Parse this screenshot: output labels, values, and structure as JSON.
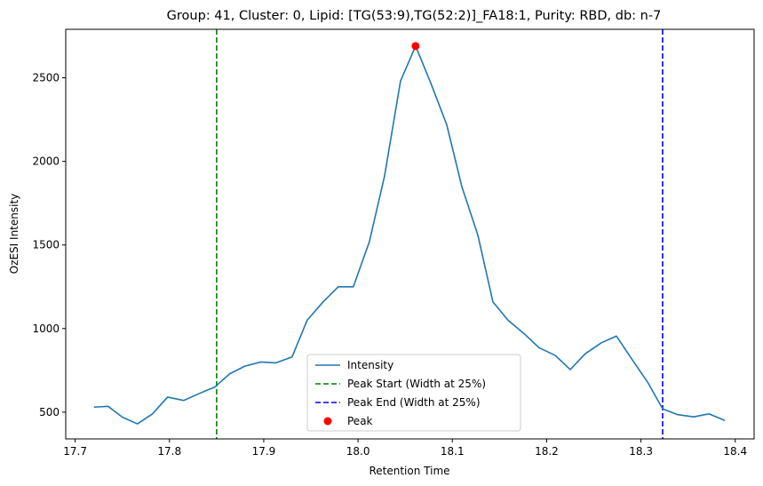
{
  "chart_data": {
    "type": "line",
    "title": "Group: 41, Cluster: 0, Lipid: [TG(53:9),TG(52:2)]_FA18:1, Purity: RBD, db: n-7",
    "xlabel": "Retention Time",
    "ylabel": "OzESI Intensity",
    "xlim": [
      17.69,
      18.42
    ],
    "ylim": [
      340,
      2790
    ],
    "xticks": [
      17.7,
      17.8,
      17.9,
      18.0,
      18.1,
      18.2,
      18.3,
      18.4
    ],
    "xtick_labels": [
      "17.7",
      "17.8",
      "17.9",
      "18.0",
      "18.1",
      "18.2",
      "18.3",
      "18.4"
    ],
    "yticks": [
      500,
      1000,
      1500,
      2000,
      2500
    ],
    "ytick_labels": [
      "500",
      "1000",
      "1500",
      "2000",
      "2500"
    ],
    "grid": false,
    "legend_position": "lower-center",
    "series": [
      {
        "name": "Intensity",
        "color": "#1f77b4",
        "x": [
          17.72,
          17.735,
          17.75,
          17.766,
          17.782,
          17.798,
          17.815,
          17.831,
          17.848,
          17.864,
          17.88,
          17.897,
          17.913,
          17.93,
          17.946,
          17.963,
          17.979,
          17.995,
          18.012,
          18.028,
          18.045,
          18.061,
          18.077,
          18.094,
          18.11,
          18.127,
          18.143,
          18.159,
          18.176,
          18.192,
          18.209,
          18.225,
          18.241,
          18.258,
          18.274,
          18.29,
          18.307,
          18.323,
          18.339,
          18.356,
          18.372,
          18.389
        ],
        "y": [
          530,
          535,
          470,
          430,
          490,
          590,
          570,
          610,
          650,
          730,
          775,
          800,
          795,
          830,
          1050,
          1160,
          1250,
          1250,
          1520,
          1910,
          2480,
          2690,
          2470,
          2220,
          1850,
          1560,
          1160,
          1050,
          970,
          885,
          840,
          755,
          850,
          915,
          955,
          820,
          680,
          520,
          485,
          472,
          490,
          450
        ]
      }
    ],
    "vlines": [
      {
        "name": "Peak Start (Width at 25%)",
        "x": 17.85,
        "color": "#008000",
        "style": "dashed"
      },
      {
        "name": "Peak End (Width at 25%)",
        "x": 18.323,
        "color": "#0000ff",
        "style": "dashed"
      }
    ],
    "points": [
      {
        "name": "Peak",
        "x": 18.061,
        "y": 2690,
        "color": "#ff0000"
      }
    ]
  }
}
